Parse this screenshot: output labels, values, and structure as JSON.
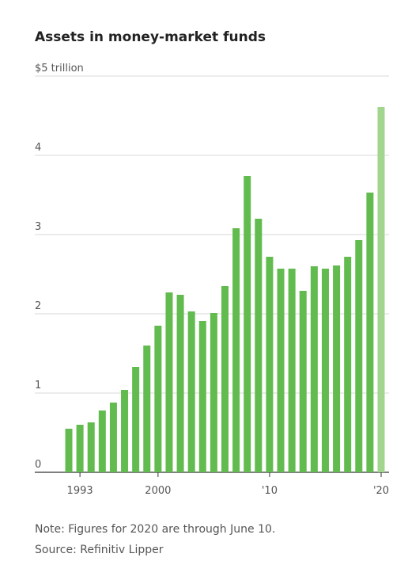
{
  "chart_data": {
    "type": "bar",
    "title": "Assets in money-market funds",
    "categories": [
      null,
      "1993",
      null,
      null,
      null,
      null,
      null,
      null,
      "2000",
      null,
      null,
      null,
      null,
      null,
      null,
      null,
      null,
      null,
      "'10",
      null,
      null,
      null,
      null,
      null,
      null,
      null,
      null,
      null,
      "'20"
    ],
    "values": [
      0.55,
      0.6,
      0.63,
      0.78,
      0.88,
      1.04,
      1.33,
      1.6,
      1.85,
      2.27,
      2.24,
      2.03,
      1.91,
      2.01,
      2.35,
      3.08,
      3.74,
      3.2,
      2.72,
      2.57,
      2.57,
      2.29,
      2.6,
      2.57,
      2.61,
      2.72,
      2.93,
      3.53,
      4.61
    ],
    "colors": [
      "#62bb4e",
      "#62bb4e",
      "#62bb4e",
      "#62bb4e",
      "#62bb4e",
      "#62bb4e",
      "#62bb4e",
      "#62bb4e",
      "#62bb4e",
      "#62bb4e",
      "#62bb4e",
      "#62bb4e",
      "#62bb4e",
      "#62bb4e",
      "#62bb4e",
      "#62bb4e",
      "#62bb4e",
      "#62bb4e",
      "#62bb4e",
      "#62bb4e",
      "#62bb4e",
      "#62bb4e",
      "#62bb4e",
      "#62bb4e",
      "#62bb4e",
      "#62bb4e",
      "#62bb4e",
      "#62bb4e",
      "#a2d58e"
    ],
    "ylim": [
      0,
      5
    ],
    "yticks": [
      0,
      1,
      2,
      3,
      4,
      {
        "value": 5,
        "label": "$5 trillion"
      }
    ],
    "grid": true,
    "note": "Note: Figures for 2020 are through June 10.",
    "source": "Source: Refinitiv Lipper"
  }
}
